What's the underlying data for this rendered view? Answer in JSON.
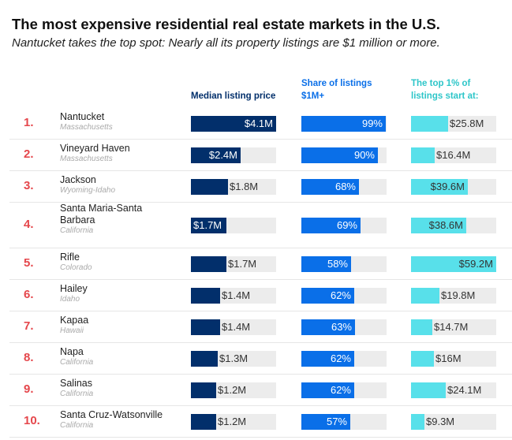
{
  "title": "The most expensive residential real estate markets in the U.S.",
  "subtitle": "Nantucket takes the top spot: Nearly all its property listings are $1 million or more.",
  "colors": {
    "rank": "#e5474c",
    "median": "#022f6b",
    "share": "#0a6fe8",
    "top1": "#58e0ea",
    "track": "#ececec"
  },
  "chart_data": {
    "type": "table",
    "columns": [
      {
        "key": "median",
        "header": "Median listing price",
        "unit": "$M",
        "color": "#022f6b",
        "header_color": "#022f6b",
        "max": 4.1
      },
      {
        "key": "share",
        "header": "Share of listings $1M+",
        "unit": "%",
        "color": "#0a6fe8",
        "header_color": "#0a6fe8",
        "max": 100
      },
      {
        "key": "top1",
        "header": "The top 1% of listings start at:",
        "unit": "$M",
        "color": "#58e0ea",
        "header_color": "#2ec6c9",
        "max": 59.2
      }
    ],
    "rows": [
      {
        "rank": "1.",
        "name": "Nantucket",
        "state": "Massachusetts",
        "median": 4.1,
        "median_label": "$4.1M",
        "share": 99,
        "share_label": "99%",
        "top1": 25.8,
        "top1_label": "$25.8M"
      },
      {
        "rank": "2.",
        "name": "Vineyard Haven",
        "state": "Massachusetts",
        "median": 2.4,
        "median_label": "$2.4M",
        "share": 90,
        "share_label": "90%",
        "top1": 16.4,
        "top1_label": "$16.4M"
      },
      {
        "rank": "3.",
        "name": "Jackson",
        "state": "Wyoming-Idaho",
        "median": 1.8,
        "median_label": "$1.8M",
        "share": 68,
        "share_label": "68%",
        "top1": 39.6,
        "top1_label": "$39.6M"
      },
      {
        "rank": "4.",
        "name": "Santa Maria-Santa Barbara",
        "state": "California",
        "median": 1.7,
        "median_label": "$1.7M",
        "share": 69,
        "share_label": "69%",
        "top1": 38.6,
        "top1_label": "$38.6M"
      },
      {
        "rank": "5.",
        "name": "Rifle",
        "state": "Colorado",
        "median": 1.7,
        "median_label": "$1.7M",
        "share": 58,
        "share_label": "58%",
        "top1": 59.2,
        "top1_label": "$59.2M"
      },
      {
        "rank": "6.",
        "name": "Hailey",
        "state": "Idaho",
        "median": 1.4,
        "median_label": "$1.4M",
        "share": 62,
        "share_label": "62%",
        "top1": 19.8,
        "top1_label": "$19.8M"
      },
      {
        "rank": "7.",
        "name": "Kapaa",
        "state": "Hawaii",
        "median": 1.4,
        "median_label": "$1.4M",
        "share": 63,
        "share_label": "63%",
        "top1": 14.7,
        "top1_label": "$14.7M"
      },
      {
        "rank": "8.",
        "name": "Napa",
        "state": "California",
        "median": 1.3,
        "median_label": "$1.3M",
        "share": 62,
        "share_label": "62%",
        "top1": 16,
        "top1_label": "$16M"
      },
      {
        "rank": "9.",
        "name": "Salinas",
        "state": "California",
        "median": 1.2,
        "median_label": "$1.2M",
        "share": 62,
        "share_label": "62%",
        "top1": 24.1,
        "top1_label": "$24.1M"
      },
      {
        "rank": "10.",
        "name": "Santa Cruz-Watsonville",
        "state": "California",
        "median": 1.2,
        "median_label": "$1.2M",
        "share": 57,
        "share_label": "57%",
        "top1": 9.3,
        "top1_label": "$9.3M"
      }
    ]
  }
}
